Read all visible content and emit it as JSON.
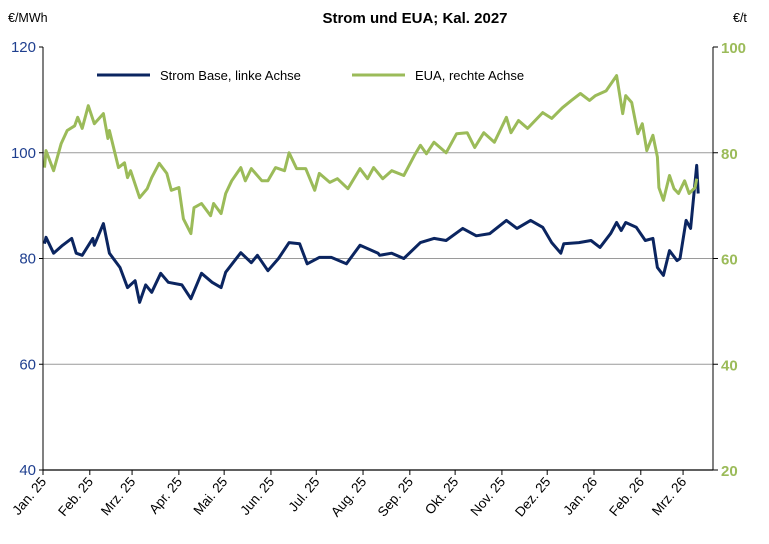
{
  "chart_data": {
    "type": "line",
    "title": "Strom und EUA; Kal. 2027",
    "ylabel_left": "€/MWh",
    "ylabel_right": "€/t",
    "ylim_left": [
      40,
      120
    ],
    "ylim_right": [
      20,
      100
    ],
    "yticks_left": [
      "40",
      "60",
      "80",
      "100",
      "120"
    ],
    "yticks_right": [
      "20",
      "40",
      "60",
      "80",
      "100"
    ],
    "xticks": [
      {
        "date": "2025-01-01",
        "label": "Jan. 25"
      },
      {
        "date": "2025-02-01",
        "label": "Feb. 25"
      },
      {
        "date": "2025-03-01",
        "label": "Mrz. 25"
      },
      {
        "date": "2025-04-01",
        "label": "Apr. 25"
      },
      {
        "date": "2025-05-01",
        "label": "Mai. 25"
      },
      {
        "date": "2025-06-01",
        "label": "Jun. 25"
      },
      {
        "date": "2025-07-01",
        "label": "Jul. 25"
      },
      {
        "date": "2025-08-01",
        "label": "Aug. 25"
      },
      {
        "date": "2025-09-01",
        "label": "Sep. 25"
      },
      {
        "date": "2025-10-01",
        "label": "Okt. 25"
      },
      {
        "date": "2025-11-01",
        "label": "Nov. 25"
      },
      {
        "date": "2025-12-01",
        "label": "Dez. 25"
      },
      {
        "date": "2026-01-01",
        "label": "Jan. 26"
      },
      {
        "date": "2026-02-01",
        "label": "Feb. 26"
      },
      {
        "date": "2026-03-01",
        "label": "Mrz. 26"
      }
    ],
    "grid": "horizontal",
    "legend": "top-left, inside",
    "series": [
      {
        "name": "Strom Base, linke Achse",
        "axis": "left",
        "color": "#0b2560",
        "points": [
          [
            "2025-01-02",
            82.8
          ],
          [
            "2025-01-03",
            84
          ],
          [
            "2025-01-08",
            81
          ],
          [
            "2025-01-14",
            82.5
          ],
          [
            "2025-01-20",
            83.8
          ],
          [
            "2025-01-23",
            81
          ],
          [
            "2025-01-27",
            80.6
          ],
          [
            "2025-02-03",
            83.8
          ],
          [
            "2025-02-04",
            82.5
          ],
          [
            "2025-02-10",
            86.6
          ],
          [
            "2025-02-14",
            81
          ],
          [
            "2025-02-21",
            78.3
          ],
          [
            "2025-02-26",
            74.5
          ],
          [
            "2025-03-03",
            75.8
          ],
          [
            "2025-03-06",
            71.7
          ],
          [
            "2025-03-10",
            75
          ],
          [
            "2025-03-14",
            73.6
          ],
          [
            "2025-03-20",
            77.2
          ],
          [
            "2025-03-25",
            75.5
          ],
          [
            "2025-04-03",
            75
          ],
          [
            "2025-04-09",
            72.4
          ],
          [
            "2025-04-16",
            77.2
          ],
          [
            "2025-04-23",
            75.5
          ],
          [
            "2025-04-29",
            74.5
          ],
          [
            "2025-05-02",
            77.4
          ],
          [
            "2025-05-08",
            79.6
          ],
          [
            "2025-05-12",
            81.1
          ],
          [
            "2025-05-19",
            79.2
          ],
          [
            "2025-05-23",
            80.6
          ],
          [
            "2025-05-30",
            77.7
          ],
          [
            "2025-06-06",
            80
          ],
          [
            "2025-06-13",
            83
          ],
          [
            "2025-06-20",
            82.8
          ],
          [
            "2025-06-25",
            79
          ],
          [
            "2025-07-03",
            80.2
          ],
          [
            "2025-07-11",
            80.2
          ],
          [
            "2025-07-21",
            79
          ],
          [
            "2025-07-30",
            82.5
          ],
          [
            "2025-08-11",
            81
          ],
          [
            "2025-08-12",
            80.6
          ],
          [
            "2025-08-20",
            81
          ],
          [
            "2025-08-28",
            80
          ],
          [
            "2025-09-08",
            83
          ],
          [
            "2025-09-17",
            83.8
          ],
          [
            "2025-09-25",
            83.4
          ],
          [
            "2025-10-06",
            85.7
          ],
          [
            "2025-10-15",
            84.3
          ],
          [
            "2025-10-24",
            84.7
          ],
          [
            "2025-11-04",
            87.2
          ],
          [
            "2025-11-11",
            85.7
          ],
          [
            "2025-11-20",
            87.2
          ],
          [
            "2025-11-28",
            85.9
          ],
          [
            "2025-12-04",
            83
          ],
          [
            "2025-12-10",
            81
          ],
          [
            "2025-12-12",
            82.8
          ],
          [
            "2025-12-22",
            83
          ],
          [
            "2025-12-30",
            83.4
          ],
          [
            "2026-01-05",
            82.1
          ],
          [
            "2026-01-12",
            84.7
          ],
          [
            "2026-01-16",
            86.8
          ],
          [
            "2026-01-19",
            85.3
          ],
          [
            "2026-01-22",
            86.8
          ],
          [
            "2026-01-29",
            85.9
          ],
          [
            "2026-02-04",
            83.4
          ],
          [
            "2026-02-09",
            83.8
          ],
          [
            "2026-02-12",
            78.3
          ],
          [
            "2026-02-16",
            76.8
          ],
          [
            "2026-02-20",
            81.5
          ],
          [
            "2026-02-25",
            79.6
          ],
          [
            "2026-02-27",
            80
          ],
          [
            "2026-03-03",
            87.2
          ],
          [
            "2026-03-06",
            85.7
          ],
          [
            "2026-03-10",
            97.6
          ],
          [
            "2026-03-11",
            92.3
          ]
        ]
      },
      {
        "name": "EUA, rechte Achse",
        "axis": "right",
        "color": "#9bbb59",
        "points": [
          [
            "2025-01-02",
            77.2
          ],
          [
            "2025-01-03",
            80.4
          ],
          [
            "2025-01-08",
            76.6
          ],
          [
            "2025-01-13",
            81.7
          ],
          [
            "2025-01-17",
            84.2
          ],
          [
            "2025-01-22",
            85.1
          ],
          [
            "2025-01-24",
            86.7
          ],
          [
            "2025-01-27",
            84.6
          ],
          [
            "2025-01-31",
            88.9
          ],
          [
            "2025-02-04",
            85.5
          ],
          [
            "2025-02-10",
            87.4
          ],
          [
            "2025-02-13",
            82.7
          ],
          [
            "2025-02-14",
            84.2
          ],
          [
            "2025-02-20",
            77.2
          ],
          [
            "2025-02-24",
            78.1
          ],
          [
            "2025-02-26",
            75.3
          ],
          [
            "2025-02-28",
            76.6
          ],
          [
            "2025-03-06",
            71.5
          ],
          [
            "2025-03-11",
            73.2
          ],
          [
            "2025-03-14",
            75.3
          ],
          [
            "2025-03-19",
            78
          ],
          [
            "2025-03-24",
            76.1
          ],
          [
            "2025-03-27",
            72.9
          ],
          [
            "2025-04-01",
            73.4
          ],
          [
            "2025-04-04",
            67.5
          ],
          [
            "2025-04-09",
            64.7
          ],
          [
            "2025-04-11",
            69.6
          ],
          [
            "2025-04-16",
            70.4
          ],
          [
            "2025-04-22",
            68.1
          ],
          [
            "2025-04-24",
            70.4
          ],
          [
            "2025-04-29",
            68.5
          ],
          [
            "2025-05-02",
            72.3
          ],
          [
            "2025-05-06",
            74.7
          ],
          [
            "2025-05-12",
            77.2
          ],
          [
            "2025-05-15",
            74.7
          ],
          [
            "2025-05-19",
            77
          ],
          [
            "2025-05-26",
            74.7
          ],
          [
            "2025-05-30",
            74.7
          ],
          [
            "2025-06-04",
            77.2
          ],
          [
            "2025-06-10",
            76.6
          ],
          [
            "2025-06-13",
            80
          ],
          [
            "2025-06-18",
            77
          ],
          [
            "2025-06-24",
            77
          ],
          [
            "2025-06-30",
            72.9
          ],
          [
            "2025-07-03",
            76.1
          ],
          [
            "2025-07-10",
            74.4
          ],
          [
            "2025-07-15",
            75.1
          ],
          [
            "2025-07-22",
            73.2
          ],
          [
            "2025-07-30",
            77
          ],
          [
            "2025-08-04",
            75.1
          ],
          [
            "2025-08-08",
            77.2
          ],
          [
            "2025-08-14",
            75.1
          ],
          [
            "2025-08-20",
            76.6
          ],
          [
            "2025-08-28",
            75.7
          ],
          [
            "2025-09-04",
            79.5
          ],
          [
            "2025-09-08",
            81.4
          ],
          [
            "2025-09-12",
            79.8
          ],
          [
            "2025-09-17",
            82
          ],
          [
            "2025-09-25",
            80
          ],
          [
            "2025-10-02",
            83.6
          ],
          [
            "2025-10-09",
            83.8
          ],
          [
            "2025-10-14",
            81
          ],
          [
            "2025-10-20",
            83.8
          ],
          [
            "2025-10-27",
            82
          ],
          [
            "2025-11-04",
            86.7
          ],
          [
            "2025-11-07",
            83.8
          ],
          [
            "2025-11-12",
            86.1
          ],
          [
            "2025-11-18",
            84.6
          ],
          [
            "2025-11-28",
            87.6
          ],
          [
            "2025-12-04",
            86.5
          ],
          [
            "2025-12-11",
            88.5
          ],
          [
            "2025-12-17",
            89.9
          ],
          [
            "2025-12-23",
            91.2
          ],
          [
            "2025-12-29",
            89.9
          ],
          [
            "2026-01-02",
            90.8
          ],
          [
            "2026-01-09",
            91.7
          ],
          [
            "2026-01-16",
            94.6
          ],
          [
            "2026-01-20",
            87.4
          ],
          [
            "2026-01-22",
            90.8
          ],
          [
            "2026-01-26",
            89.5
          ],
          [
            "2026-01-30",
            83.6
          ],
          [
            "2026-02-02",
            85.5
          ],
          [
            "2026-02-05",
            80.4
          ],
          [
            "2026-02-09",
            83.3
          ],
          [
            "2026-02-12",
            79.2
          ],
          [
            "2026-02-13",
            73.4
          ],
          [
            "2026-02-16",
            71
          ],
          [
            "2026-02-20",
            75.7
          ],
          [
            "2026-02-23",
            73.2
          ],
          [
            "2026-02-26",
            72.3
          ],
          [
            "2026-03-02",
            74.7
          ],
          [
            "2026-03-05",
            72.3
          ],
          [
            "2026-03-09",
            73.4
          ],
          [
            "2026-03-10",
            75.1
          ]
        ]
      }
    ],
    "axis_colors": {
      "left": "#1f3f8f",
      "right": "#9bbb59"
    }
  }
}
